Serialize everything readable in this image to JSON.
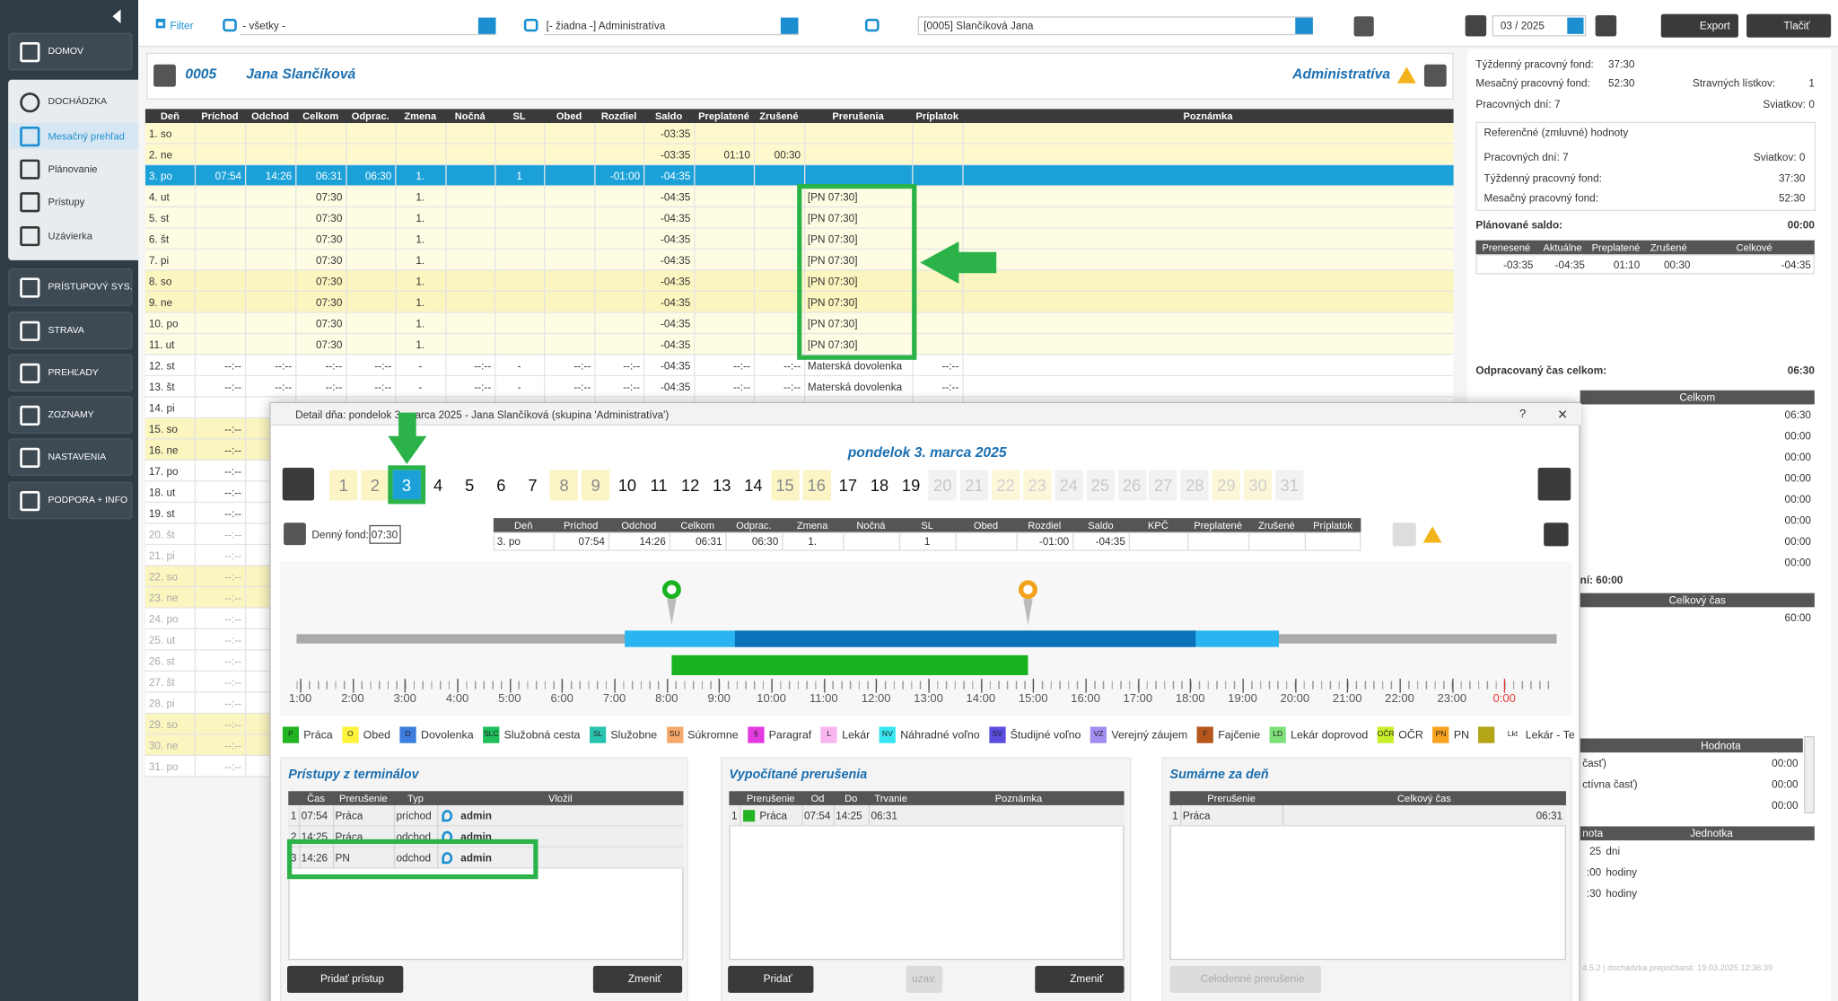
{
  "sidebar": {
    "items": [
      {
        "label": "DOMOV"
      },
      {
        "label": "DOCHÁDZKA"
      },
      {
        "label": "Mesačný prehľad"
      },
      {
        "label": "Plánovanie"
      },
      {
        "label": "Prístupy"
      },
      {
        "label": "Uzávierka"
      },
      {
        "label": "PRÍSTUPOVÝ SYS."
      },
      {
        "label": "STRAVA"
      },
      {
        "label": "PREHĽADY"
      },
      {
        "label": "ZOZNAMY"
      },
      {
        "label": "NASTAVENIA"
      },
      {
        "label": "PODPORA + INFO"
      }
    ]
  },
  "toolbar": {
    "filter": "Filter",
    "select1": "- všetky -",
    "select2": "[- žiadna -] Administratíva",
    "select3": "[0005] Slančíková Jana",
    "month": "03 / 2025",
    "export": "Export",
    "print": "Tlačiť"
  },
  "header": {
    "id": "0005",
    "name": "Jana Slančíková",
    "group": "Administratíva"
  },
  "table": {
    "columns": [
      "Deň",
      "Príchod",
      "Odchod",
      "Celkom",
      "Odprac.",
      "Zmena",
      "Nočná",
      "SL",
      "Obed",
      "Rozdiel",
      "Saldo",
      "Preplatené",
      "Zrušené",
      "Prerušenia",
      "Príplatok",
      "Poznámka"
    ],
    "rows": [
      {
        "bg": "#fdf9cc",
        "fg": "#333",
        "cells": [
          "1. so",
          null,
          null,
          null,
          null,
          null,
          null,
          null,
          null,
          null,
          "-03:35"
        ]
      },
      {
        "bg": "#fdf9cc",
        "fg": "#333",
        "cells": [
          "2. ne",
          null,
          null,
          null,
          null,
          null,
          null,
          null,
          null,
          null,
          "-03:35",
          "01:10",
          "00:30"
        ]
      },
      {
        "bg": "#1ba1d8",
        "fg": "#fff",
        "cells": [
          "3. po",
          "07:54",
          "14:26",
          "06:31",
          "06:30",
          "1.",
          null,
          "1",
          null,
          "-01:00",
          "-04:35"
        ]
      },
      {
        "bg": "#fefce2",
        "fg": "#333",
        "cells": [
          "4. ut",
          null,
          null,
          "07:30",
          null,
          "1.",
          null,
          null,
          null,
          null,
          "-04:35",
          null,
          null,
          "[PN 07:30]"
        ]
      },
      {
        "bg": "#fefce2",
        "fg": "#333",
        "cells": [
          "5. st",
          null,
          null,
          "07:30",
          null,
          "1.",
          null,
          null,
          null,
          null,
          "-04:35",
          null,
          null,
          "[PN 07:30]"
        ]
      },
      {
        "bg": "#fefce2",
        "fg": "#333",
        "cells": [
          "6. št",
          null,
          null,
          "07:30",
          null,
          "1.",
          null,
          null,
          null,
          null,
          "-04:35",
          null,
          null,
          "[PN 07:30]"
        ]
      },
      {
        "bg": "#fefce2",
        "fg": "#333",
        "cells": [
          "7. pi",
          null,
          null,
          "07:30",
          null,
          "1.",
          null,
          null,
          null,
          null,
          "-04:35",
          null,
          null,
          "[PN 07:30]"
        ]
      },
      {
        "bg": "#fbf5bf",
        "fg": "#333",
        "cells": [
          "8. so",
          null,
          null,
          "07:30",
          null,
          "1.",
          null,
          null,
          null,
          null,
          "-04:35",
          null,
          null,
          "[PN 07:30]"
        ]
      },
      {
        "bg": "#fbf5bf",
        "fg": "#333",
        "cells": [
          "9. ne",
          null,
          null,
          "07:30",
          null,
          "1.",
          null,
          null,
          null,
          null,
          "-04:35",
          null,
          null,
          "[PN 07:30]"
        ]
      },
      {
        "bg": "#fefce2",
        "fg": "#333",
        "cells": [
          "10. po",
          null,
          null,
          "07:30",
          null,
          "1.",
          null,
          null,
          null,
          null,
          "-04:35",
          null,
          null,
          "[PN 07:30]"
        ]
      },
      {
        "bg": "#fefce2",
        "fg": "#333",
        "cells": [
          "11. ut",
          null,
          null,
          "07:30",
          null,
          "1.",
          null,
          null,
          null,
          null,
          "-04:35",
          null,
          null,
          "[PN 07:30]"
        ]
      },
      {
        "bg": "#ffffff",
        "fg": "#333",
        "cells": [
          "12. st",
          "--:--",
          "--:--",
          "--:--",
          "--:--",
          "-",
          "--:--",
          "-",
          "--:--",
          "--:--",
          "-04:35",
          "--:--",
          "--:--",
          "Materská dovolenka",
          "--:--"
        ]
      },
      {
        "bg": "#ffffff",
        "fg": "#333",
        "cells": [
          "13. št",
          "--:--",
          "--:--",
          "--:--",
          "--:--",
          "-",
          "--:--",
          "-",
          "--:--",
          "--:--",
          "-04:35",
          "--:--",
          "--:--",
          "Materská dovolenka",
          "--:--"
        ]
      },
      {
        "bg": "#ffffff",
        "fg": "#333",
        "cells": [
          "14. pi"
        ]
      },
      {
        "bg": "#fbf5bf",
        "fg": "#333",
        "cells": [
          "15. so",
          "--:--"
        ]
      },
      {
        "bg": "#fbf5bf",
        "fg": "#333",
        "cells": [
          "16. ne",
          "--:--"
        ]
      },
      {
        "bg": "#ffffff",
        "fg": "#333",
        "cells": [
          "17. po",
          "--:--"
        ]
      },
      {
        "bg": "#ffffff",
        "fg": "#333",
        "cells": [
          "18. ut",
          "--:--"
        ]
      },
      {
        "bg": "#ffffff",
        "fg": "#333",
        "cells": [
          "19. st",
          "--:--"
        ]
      },
      {
        "bg": "#ffffff",
        "fg": "#aaa",
        "cells": [
          "20. št",
          "--:--"
        ]
      },
      {
        "bg": "#ffffff",
        "fg": "#aaa",
        "cells": [
          "21. pi",
          "--:--"
        ]
      },
      {
        "bg": "#fbf5bf",
        "fg": "#aaa",
        "cells": [
          "22. so",
          "--:--"
        ]
      },
      {
        "bg": "#fbf5bf",
        "fg": "#aaa",
        "cells": [
          "23. ne",
          "--:--"
        ]
      },
      {
        "bg": "#ffffff",
        "fg": "#aaa",
        "cells": [
          "24. po",
          "--:--"
        ]
      },
      {
        "bg": "#ffffff",
        "fg": "#aaa",
        "cells": [
          "25. ut",
          "--:--"
        ]
      },
      {
        "bg": "#ffffff",
        "fg": "#aaa",
        "cells": [
          "26. st",
          "--:--"
        ]
      },
      {
        "bg": "#ffffff",
        "fg": "#aaa",
        "cells": [
          "27. št",
          "--:--"
        ]
      },
      {
        "bg": "#ffffff",
        "fg": "#aaa",
        "cells": [
          "28. pi",
          "--:--"
        ]
      },
      {
        "bg": "#fbf5bf",
        "fg": "#aaa",
        "cells": [
          "29. so",
          "--:--"
        ]
      },
      {
        "bg": "#fbf5bf",
        "fg": "#aaa",
        "cells": [
          "30. ne",
          "--:--"
        ]
      },
      {
        "bg": "#ffffff",
        "fg": "#aaa",
        "cells": [
          "31. po",
          "--:--"
        ]
      }
    ]
  },
  "right_panel": {
    "texts": [
      "Týždenný pracovný fond:",
      "37:30",
      "Mesačný pracovný fond:",
      "52:30",
      "Stravných lístkov:",
      "1",
      "Pracovných dní: 7",
      "Sviatkov: 0",
      "Referenčné (zmluvné) hodnoty",
      "Pracovných dní: 7",
      "Sviatkov: 0",
      "Týždenný pracovný fond:",
      "37:30",
      "Mesačný pracovný fond:",
      "52:30",
      "Plánované saldo:",
      "00:00",
      "Odpracovaný čas celkom:",
      "06:30",
      "ní: 60:00",
      "60:00"
    ],
    "saldo_table": {
      "columns": [
        "Prenesené",
        "Aktuálne",
        "Preplatené",
        "Zrušené",
        "Celkové"
      ],
      "row": [
        "-03:35",
        "-04:35",
        "01:10",
        "00:30",
        "-04:35"
      ]
    },
    "celkom": {
      "header": "Celkom",
      "values": [
        "06:30",
        "00:00",
        "00:00",
        "00:00",
        "00:00",
        "00:00",
        "00:00",
        "00:00"
      ]
    },
    "celkovy_cas": "Celkový čas",
    "hodnota": {
      "header": "Hodnota",
      "rows": [
        [
          "časť)",
          "00:00"
        ],
        [
          "ctívna časť)",
          "00:00"
        ],
        [
          "00:00"
        ]
      ]
    },
    "jednotka": {
      "headers": [
        "nota",
        "Jednotka"
      ],
      "rows": [
        [
          "25",
          "dni"
        ],
        [
          ":00",
          "hodiny"
        ],
        [
          ":30",
          "hodiny"
        ]
      ]
    },
    "footer": "4.5.2 | dochádzka prepočítaná: 19.03.2025 12:36:39"
  },
  "modal": {
    "title": "Detail dňa: pondelok 3. marca 2025 - Jana Slančíková (skupina 'Administratíva')",
    "help": "?",
    "close": "×",
    "date": "pondelok 3. marca 2025",
    "days": [
      {
        "label": "1",
        "bg": "#fbf5c6",
        "fg": "#888"
      },
      {
        "label": "2",
        "bg": "#fbf5c6",
        "fg": "#888"
      },
      {
        "label": "3",
        "bg": "#1ba1d8",
        "fg": "#fff"
      },
      {
        "label": "4",
        "bg": "#ffffff",
        "fg": "#111"
      },
      {
        "label": "5",
        "bg": "#ffffff",
        "fg": "#111"
      },
      {
        "label": "6",
        "bg": "#ffffff",
        "fg": "#111"
      },
      {
        "label": "7",
        "bg": "#ffffff",
        "fg": "#111"
      },
      {
        "label": "8",
        "bg": "#fbf5c6",
        "fg": "#888"
      },
      {
        "label": "9",
        "bg": "#fbf5c6",
        "fg": "#888"
      },
      {
        "label": "10",
        "bg": "#ffffff",
        "fg": "#111"
      },
      {
        "label": "11",
        "bg": "#ffffff",
        "fg": "#111"
      },
      {
        "label": "12",
        "bg": "#ffffff",
        "fg": "#111"
      },
      {
        "label": "13",
        "bg": "#ffffff",
        "fg": "#111"
      },
      {
        "label": "14",
        "bg": "#ffffff",
        "fg": "#111"
      },
      {
        "label": "15",
        "bg": "#fbf5c6",
        "fg": "#888"
      },
      {
        "label": "16",
        "bg": "#fbf5c6",
        "fg": "#888"
      },
      {
        "label": "17",
        "bg": "#ffffff",
        "fg": "#111"
      },
      {
        "label": "18",
        "bg": "#ffffff",
        "fg": "#111"
      },
      {
        "label": "19",
        "bg": "#ffffff",
        "fg": "#111"
      },
      {
        "label": "20",
        "bg": "#f2f2f2",
        "fg": "#c8c8c8"
      },
      {
        "label": "21",
        "bg": "#f2f2f2",
        "fg": "#c8c8c8"
      },
      {
        "label": "22",
        "bg": "#fbf7d8",
        "fg": "#d0d0d0"
      },
      {
        "label": "23",
        "bg": "#fbf7d8",
        "fg": "#d0d0d0"
      },
      {
        "label": "24",
        "bg": "#f2f2f2",
        "fg": "#c8c8c8"
      },
      {
        "label": "25",
        "bg": "#f2f2f2",
        "fg": "#c8c8c8"
      },
      {
        "label": "26",
        "bg": "#f2f2f2",
        "fg": "#c8c8c8"
      },
      {
        "label": "27",
        "bg": "#f2f2f2",
        "fg": "#c8c8c8"
      },
      {
        "label": "28",
        "bg": "#f2f2f2",
        "fg": "#c8c8c8"
      },
      {
        "label": "29",
        "bg": "#fbf7d8",
        "fg": "#d0d0d0"
      },
      {
        "label": "30",
        "bg": "#fbf7d8",
        "fg": "#d0d0d0"
      },
      {
        "label": "31",
        "bg": "#f2f2f2",
        "fg": "#c8c8c8"
      }
    ],
    "fund_label": "Denný fond:",
    "fund_value": "07:30",
    "day_table": {
      "columns": [
        "Deň",
        "Príchod",
        "Odchod",
        "Celkom",
        "Odprac.",
        "Zmena",
        "Nočná",
        "SL",
        "Obed",
        "Rozdiel",
        "Saldo",
        "KPČ",
        "Preplatené",
        "Zrušené",
        "Príplatok"
      ],
      "row": [
        "3. po",
        "07:54",
        "14:26",
        "06:31",
        "06:30",
        "1.",
        null,
        "1",
        null,
        "-01:00",
        "-04:35"
      ]
    },
    "timeline": {
      "xlim": [
        0.93,
        25
      ],
      "xticks": [
        {
          "value": 1,
          "label": "1:00"
        },
        {
          "value": 2,
          "label": "2:00"
        },
        {
          "value": 3,
          "label": "3:00"
        },
        {
          "value": 4,
          "label": "4:00"
        },
        {
          "value": 5,
          "label": "5:00"
        },
        {
          "value": 6,
          "label": "6:00"
        },
        {
          "value": 7,
          "label": "7:00"
        },
        {
          "value": 8,
          "label": "8:00"
        },
        {
          "value": 9,
          "label": "9:00"
        },
        {
          "value": 10,
          "label": "10:00"
        },
        {
          "value": 11,
          "label": "11:00"
        },
        {
          "value": 12,
          "label": "12:00"
        },
        {
          "value": 13,
          "label": "13:00"
        },
        {
          "value": 14,
          "label": "14:00"
        },
        {
          "value": 15,
          "label": "15:00"
        },
        {
          "value": 16,
          "label": "16:00"
        },
        {
          "value": 17,
          "label": "17:00"
        },
        {
          "value": 18,
          "label": "18:00"
        },
        {
          "value": 19,
          "label": "19:00"
        },
        {
          "value": 20,
          "label": "20:00"
        },
        {
          "value": 21,
          "label": "21:00"
        },
        {
          "value": 22,
          "label": "22:00"
        },
        {
          "value": 23,
          "label": "23:00"
        },
        {
          "value": 24,
          "label": "0:00"
        }
      ],
      "last_tick_color": "#e53935",
      "bars": [
        {
          "from": 7.2,
          "to": 19.7,
          "color": "#29b6f0",
          "row": "top"
        },
        {
          "from": 9.3,
          "to": 18.1,
          "color": "#0a72b8",
          "row": "top"
        },
        {
          "from": 8.1,
          "to": 14.9,
          "color": "#18b31e",
          "row": "bottom"
        }
      ],
      "pins": [
        {
          "at": 8.1,
          "color": "#18b31e"
        },
        {
          "at": 14.9,
          "color": "#f3a21c"
        }
      ]
    },
    "legend": [
      {
        "code": "P",
        "label": "Práca",
        "color": "#22b422"
      },
      {
        "code": "O",
        "label": "Obed",
        "color": "#fff23a"
      },
      {
        "code": "D",
        "label": "Dovolenka",
        "color": "#3d7de0"
      },
      {
        "code": "SLC",
        "label": "Služobná cesta",
        "color": "#1fbf5c"
      },
      {
        "code": "SL",
        "label": "Služobne",
        "color": "#29c4b0"
      },
      {
        "code": "SU",
        "label": "Súkromne",
        "color": "#f5a96a"
      },
      {
        "code": "§",
        "label": "Paragraf",
        "color": "#e33be0"
      },
      {
        "code": "L",
        "label": "Lekár",
        "color": "#f7b6ef"
      },
      {
        "code": "NV",
        "label": "Náhradné voľno",
        "color": "#37e6f0"
      },
      {
        "code": "SV",
        "label": "Študijné voľno",
        "color": "#5b4de0"
      },
      {
        "code": "VZ",
        "label": "Verejný záujem",
        "color": "#a28ef0"
      },
      {
        "code": "F",
        "label": "Fajčenie",
        "color": "#b5561c"
      },
      {
        "code": "LD",
        "label": "Lekár doprovod",
        "color": "#7fe07a"
      },
      {
        "code": "OČR",
        "label": "OČR",
        "color": "#c8f02a"
      },
      {
        "code": "PN",
        "label": "PN",
        "color": "#f7a21c"
      },
      {
        "color": "#b5a519"
      },
      {
        "code": "Lkt",
        "label": "Lekár - Tehotens",
        "color": "#ffffff"
      }
    ],
    "panels": [
      {
        "title": "Prístupy z terminálov",
        "columns": [
          "Čas",
          "Prerušenie",
          "Typ",
          "Vložil"
        ],
        "rows": [
          [
            "1",
            "07:54",
            "Práca",
            "príchod",
            "admin"
          ],
          [
            "2",
            "14:25",
            "Práca",
            "odchod",
            "admin"
          ],
          [
            "3",
            "14:26",
            "PN",
            "odchod",
            "admin"
          ]
        ],
        "buttons": [
          "Pridať prístup",
          "Zmeniť"
        ]
      },
      {
        "title": "Vypočítané prerušenia",
        "columns": [
          "Prerušenie",
          "Od",
          "Do",
          "Trvanie",
          "Poznámka"
        ],
        "rows": [
          [
            "1",
            "Práca",
            "07:54",
            "14:25",
            "06:31"
          ]
        ],
        "buttons": [
          "Pridať",
          "uzav.",
          "Zmeniť"
        ]
      },
      {
        "title": "Sumárne za deň",
        "columns": [
          "Prerušenie",
          "Celkový čas"
        ],
        "rows": [
          [
            "1",
            "Práca",
            "06:31"
          ]
        ],
        "buttons": [
          "Celodenné prerušenie"
        ]
      }
    ]
  }
}
